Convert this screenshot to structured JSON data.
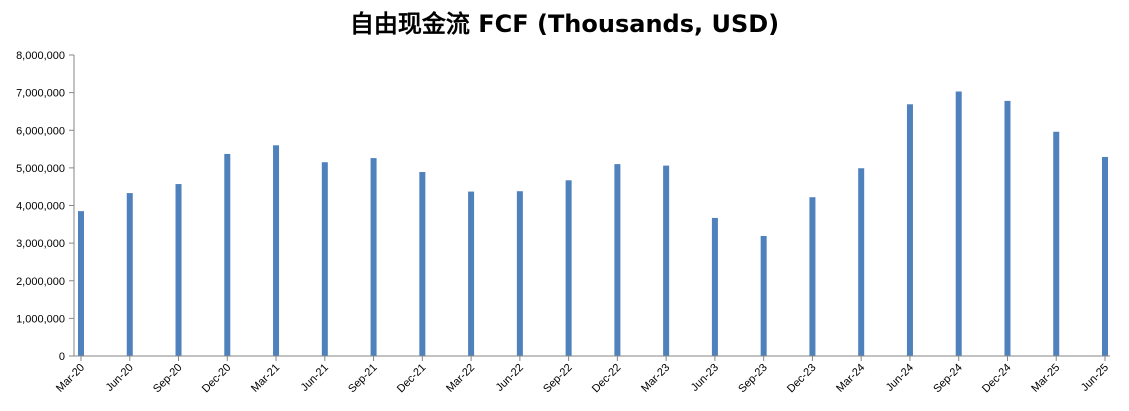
{
  "chart_data": {
    "type": "bar",
    "title": "自由现金流 FCF (Thousands, USD)",
    "xlabel": "",
    "ylabel": "",
    "ylim": [
      0,
      8000000
    ],
    "yticks": [
      0,
      1000000,
      2000000,
      3000000,
      4000000,
      5000000,
      6000000,
      7000000,
      8000000
    ],
    "ytick_labels": [
      "0",
      "1,000,000",
      "2,000,000",
      "3,000,000",
      "4,000,000",
      "5,000,000",
      "6,000,000",
      "7,000,000",
      "8,000,000"
    ],
    "grid": false,
    "legend": "none",
    "bar_color": "#4f81bd",
    "categories": [
      "Mar-20",
      "Jun-20",
      "Sep-20",
      "Dec-20",
      "Mar-21",
      "Jun-21",
      "Sep-21",
      "Dec-21",
      "Mar-22",
      "Jun-22",
      "Sep-22",
      "Dec-22",
      "Mar-23",
      "Jun-23",
      "Sep-23",
      "Dec-23",
      "Mar-24",
      "Jun-24",
      "Sep-24",
      "Dec-24",
      "Mar-25",
      "Jun-25"
    ],
    "values": [
      3850000,
      4330000,
      4570000,
      5370000,
      5600000,
      5150000,
      5260000,
      4890000,
      4370000,
      4380000,
      4670000,
      5100000,
      5060000,
      3670000,
      3190000,
      4220000,
      4990000,
      6690000,
      7030000,
      6780000,
      5960000,
      5290000
    ]
  }
}
